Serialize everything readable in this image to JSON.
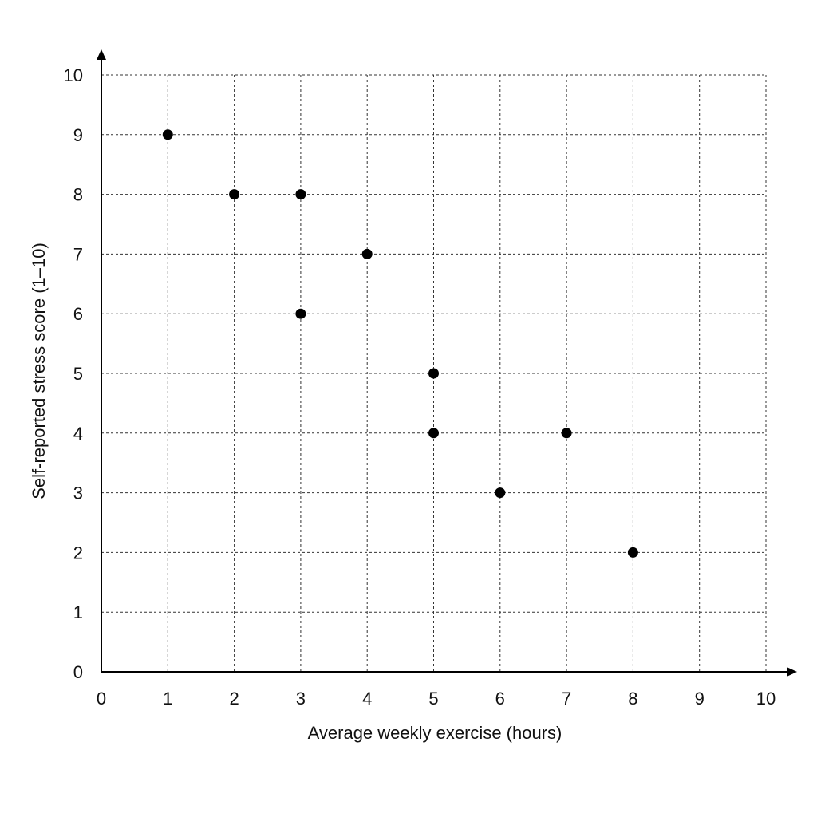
{
  "chart_data": {
    "type": "scatter",
    "xlabel": "Average weekly exercise (hours)",
    "ylabel": "Self-reported stress score (1–10)",
    "xlim": [
      0,
      10
    ],
    "ylim": [
      0,
      10
    ],
    "x_ticks": [
      "0",
      "1",
      "2",
      "3",
      "4",
      "5",
      "6",
      "7",
      "8",
      "9",
      "10"
    ],
    "y_ticks": [
      "0",
      "1",
      "2",
      "3",
      "4",
      "5",
      "6",
      "7",
      "8",
      "9",
      "10"
    ],
    "grid": true,
    "grid_style": "dashed",
    "legend": "none",
    "point_color": "#000000",
    "points": [
      {
        "x": 1,
        "y": 9
      },
      {
        "x": 2,
        "y": 8
      },
      {
        "x": 3,
        "y": 8
      },
      {
        "x": 3,
        "y": 6
      },
      {
        "x": 4,
        "y": 7
      },
      {
        "x": 5,
        "y": 5
      },
      {
        "x": 5,
        "y": 4
      },
      {
        "x": 6,
        "y": 3
      },
      {
        "x": 7,
        "y": 4
      },
      {
        "x": 8,
        "y": 2
      }
    ]
  }
}
